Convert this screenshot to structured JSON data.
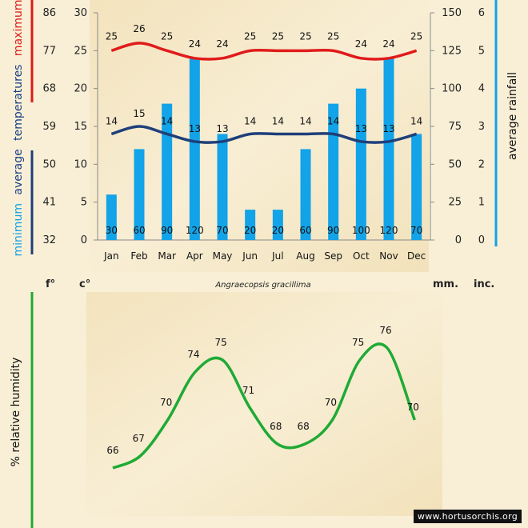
{
  "header": {
    "unit_f": "f°",
    "unit_c": "c°",
    "species": "Angraecopsis gracillima",
    "unit_mm": "mm.",
    "unit_inc": "inc."
  },
  "watermark": "www.hortusorchis.org",
  "colors": {
    "max_line": "#e01b1b",
    "min_line": "#1f3f7a",
    "rain_bar": "#12a3e8",
    "humidity_line": "#1faa35",
    "background": "#f7ecd0"
  },
  "chart_data": [
    {
      "type": "bar+line",
      "months": [
        "Jan",
        "Feb",
        "Mar",
        "Apr",
        "May",
        "Jun",
        "Jul",
        "Aug",
        "Sep",
        "Oct",
        "Nov",
        "Dec"
      ],
      "series": [
        {
          "name": "maximum",
          "unit": "°C",
          "values": [
            25,
            26,
            25,
            24,
            24,
            25,
            25,
            25,
            25,
            24,
            24,
            25
          ]
        },
        {
          "name": "minimum",
          "unit": "°C",
          "values": [
            14,
            15,
            14,
            13,
            13,
            14,
            14,
            14,
            14,
            13,
            13,
            14
          ]
        },
        {
          "name": "rainfall",
          "unit": "mm",
          "values": [
            30,
            60,
            90,
            120,
            70,
            20,
            20,
            60,
            90,
            100,
            120,
            70
          ]
        }
      ],
      "axes": {
        "fahrenheit": {
          "ticks": [
            "86",
            "77",
            "68",
            "59",
            "50",
            "41",
            "32"
          ]
        },
        "celsius": {
          "range": [
            0,
            30
          ],
          "ticks": [
            "30",
            "25",
            "20",
            "15",
            "10",
            "5",
            "0"
          ]
        },
        "rain_mm": {
          "range": [
            0,
            150
          ],
          "ticks": [
            "150",
            "125",
            "100",
            "75",
            "50",
            "25",
            "0"
          ]
        },
        "rain_inch": {
          "ticks": [
            "6",
            "5",
            "4",
            "3",
            "2",
            "1",
            "0"
          ]
        }
      },
      "left_title": {
        "minimum": "minimum",
        "average": "average",
        "temperatures": "temperatures",
        "maximum": "maximum"
      },
      "right_title": "average rainfall"
    },
    {
      "type": "line",
      "name": "% relative humidity",
      "title": "% relative humidity",
      "months": [
        "Jan",
        "Feb",
        "Mar",
        "Apr",
        "May",
        "Jun",
        "Jul",
        "Aug",
        "Sep",
        "Oct",
        "Nov",
        "Dec"
      ],
      "values": [
        66,
        67,
        70,
        74,
        75,
        71,
        68,
        68,
        70,
        75,
        76,
        70
      ],
      "range": [
        60,
        80
      ]
    }
  ]
}
